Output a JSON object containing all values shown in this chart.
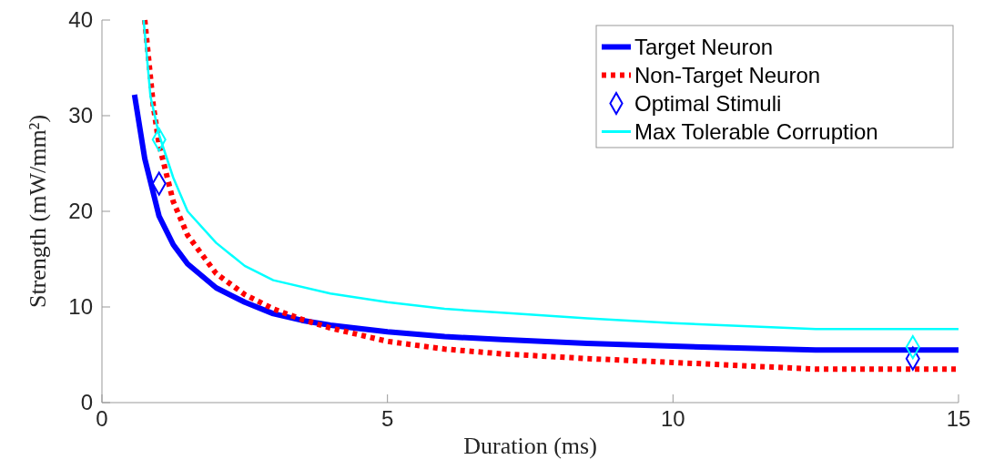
{
  "chart_data": {
    "type": "line",
    "xlabel": "Duration (ms)",
    "ylabel": "Strength (mW/mm²)",
    "xlim": [
      0,
      15
    ],
    "ylim": [
      0,
      40
    ],
    "xticks": [
      0,
      5,
      10,
      15
    ],
    "yticks": [
      0,
      10,
      20,
      30,
      40
    ],
    "grid": false,
    "legend": "top right",
    "series": [
      {
        "name": "Target Neuron",
        "color": "#0000ff",
        "line_style": "solid",
        "marker": "none",
        "x": [
          0.57,
          0.75,
          1,
          1.25,
          1.5,
          2,
          2.5,
          3,
          3.5,
          4,
          5,
          6,
          7,
          8.5,
          10,
          12.5,
          15
        ],
        "values": [
          32.2,
          25.5,
          19.5,
          16.5,
          14.5,
          12,
          10.5,
          9.3,
          8.6,
          8.1,
          7.4,
          6.9,
          6.6,
          6.2,
          5.9,
          5.5,
          5.5
        ]
      },
      {
        "name": "Non-Target Neuron",
        "color": "#ff0000",
        "line_style": "dotted",
        "marker": "none",
        "x": [
          0.75,
          0.9,
          1,
          1.25,
          1.5,
          2,
          2.5,
          3,
          3.5,
          4,
          5,
          6,
          7,
          8.5,
          10,
          12.5,
          15
        ],
        "values": [
          40,
          31,
          27,
          21,
          17.5,
          13.5,
          11.3,
          9.8,
          8.7,
          7.8,
          6.4,
          5.6,
          5.1,
          4.6,
          4.2,
          3.5,
          3.5
        ]
      },
      {
        "name": "Optimal Stimuli",
        "type": "scatter",
        "color": "#0000ff",
        "marker": "diamond",
        "x": [
          1,
          14.2
        ],
        "values": [
          22.9,
          4.6
        ]
      },
      {
        "type": "scatter",
        "color": "#00ffff",
        "marker": "diamond",
        "x": [
          1,
          14.2
        ],
        "values": [
          27.5,
          5.8
        ]
      },
      {
        "name": "Max Tolerable Corruption",
        "color": "#00ffff",
        "line_style": "solid",
        "marker": "none",
        "x": [
          0.73,
          0.85,
          1,
          1.25,
          1.5,
          2,
          2.5,
          3,
          4,
          5,
          6,
          7,
          8.5,
          10,
          12.5,
          15
        ],
        "values": [
          40,
          32,
          28,
          23.5,
          20,
          16.7,
          14.3,
          12.8,
          11.4,
          10.5,
          9.8,
          9.4,
          8.8,
          8.3,
          7.7,
          7.7
        ]
      }
    ]
  }
}
